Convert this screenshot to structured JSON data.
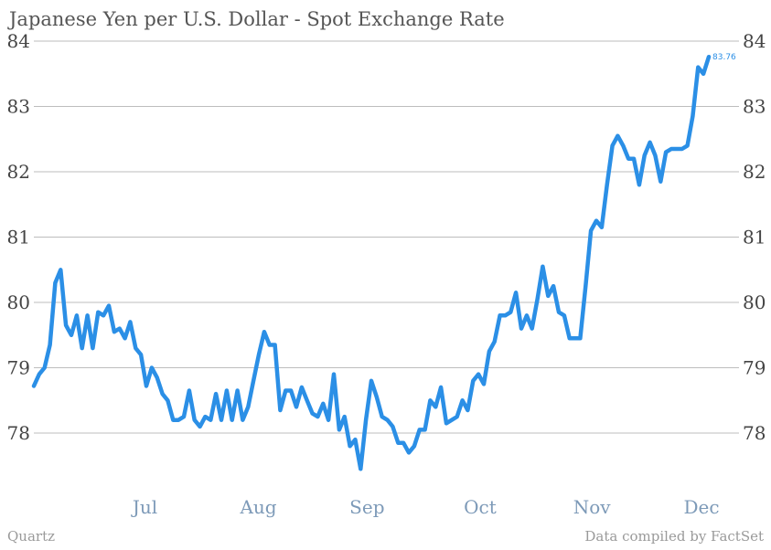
{
  "chart_data": {
    "type": "line",
    "title": "Japanese Yen per U.S. Dollar - Spot Exchange Rate",
    "xlabel": "",
    "ylabel": "",
    "ylim": [
      77.2,
      84
    ],
    "yticks": [
      78,
      79,
      80,
      81,
      82,
      83,
      84
    ],
    "x_tick_labels": [
      "Jul",
      "Aug",
      "Sep",
      "Oct",
      "Nov",
      "Dec"
    ],
    "grid": true,
    "legend": "none",
    "series": [
      {
        "values": [
          78.72,
          78.9,
          79.0,
          79.35,
          80.3,
          80.5,
          79.65,
          79.5,
          79.8,
          79.3,
          79.8,
          79.3,
          79.85,
          79.8,
          79.95,
          79.55,
          79.6,
          79.45,
          79.7,
          79.3,
          79.2,
          78.72,
          79.0,
          78.85,
          78.6,
          78.5,
          78.2,
          78.2,
          78.25,
          78.65,
          78.2,
          78.1,
          78.25,
          78.2,
          78.6,
          78.2,
          78.65,
          78.2,
          78.65,
          78.2,
          78.4,
          78.8,
          79.2,
          79.55,
          79.35,
          79.35,
          78.35,
          78.65,
          78.65,
          78.4,
          78.7,
          78.5,
          78.3,
          78.25,
          78.45,
          78.2,
          78.9,
          78.05,
          78.25,
          77.8,
          77.9,
          77.45,
          78.2,
          78.8,
          78.55,
          78.25,
          78.2,
          78.1,
          77.85,
          77.85,
          77.7,
          77.8,
          78.05,
          78.05,
          78.5,
          78.4,
          78.7,
          78.15,
          78.2,
          78.25,
          78.5,
          78.35,
          78.8,
          78.9,
          78.75,
          79.25,
          79.4,
          79.8,
          79.8,
          79.85,
          80.15,
          79.6,
          79.8,
          79.6,
          80.05,
          80.55,
          80.1,
          80.25,
          79.85,
          79.8,
          79.45,
          79.45,
          79.45,
          80.25,
          81.1,
          81.25,
          81.15,
          81.8,
          82.4,
          82.55,
          82.4,
          82.2,
          82.2,
          81.8,
          82.25,
          82.45,
          82.25,
          81.85,
          82.3,
          82.35,
          82.35,
          82.35,
          82.4,
          82.85,
          83.6,
          83.5,
          83.76
        ]
      }
    ],
    "end_label": "83.76"
  },
  "footer": {
    "left": "Quartz",
    "right": "Data compiled by FactSet"
  },
  "colors": {
    "line": "#2b8fe6",
    "x_tick_text": "#7d9ab8"
  }
}
